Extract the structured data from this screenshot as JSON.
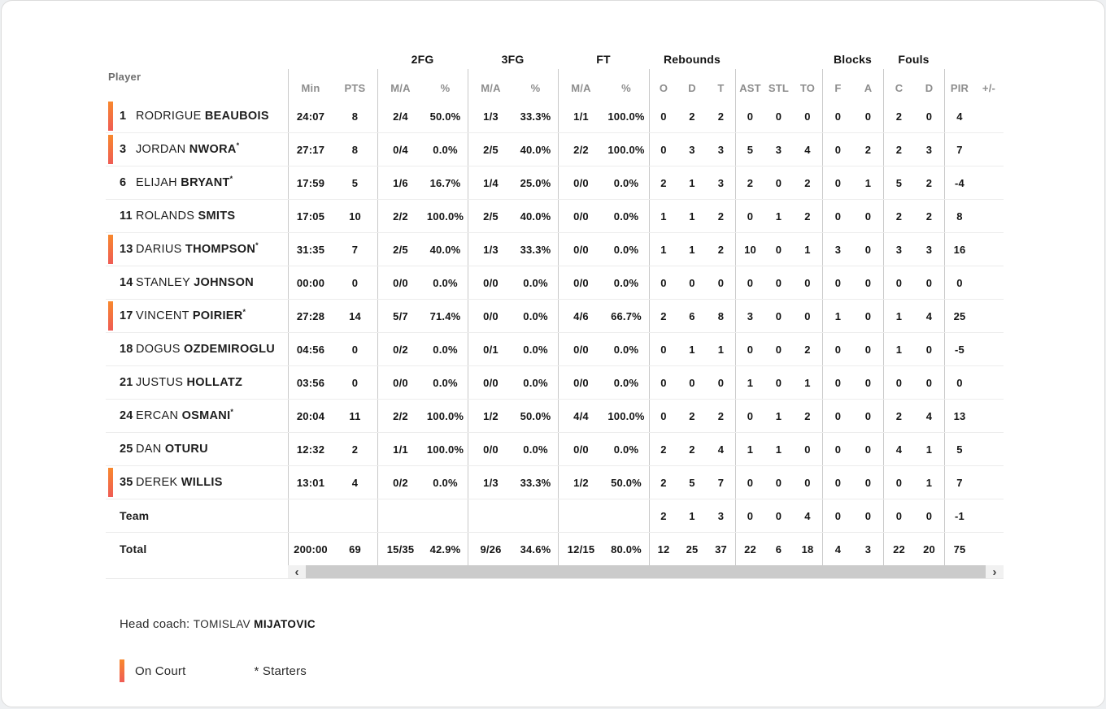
{
  "table": {
    "player_col_header": "Player",
    "groups": [
      {
        "label": "2FG",
        "start": 4,
        "end": 6
      },
      {
        "label": "3FG",
        "start": 6,
        "end": 8
      },
      {
        "label": "FT",
        "start": 8,
        "end": 10
      },
      {
        "label": "Rebounds",
        "start": 10,
        "end": 13
      },
      {
        "label": "Blocks",
        "start": 16,
        "end": 18
      },
      {
        "label": "Fouls",
        "start": 18,
        "end": 20
      }
    ],
    "sub_headers": [
      "Min",
      "PTS",
      "M/A",
      "%",
      "M/A",
      "%",
      "M/A",
      "%",
      "O",
      "D",
      "T",
      "AST",
      "STL",
      "TO",
      "F",
      "A",
      "C",
      "D",
      "PIR",
      "+/-"
    ],
    "rows": [
      {
        "num": "1",
        "first": "RODRIGUE",
        "last": "BEAUBOIS",
        "starter": false,
        "on_court": true,
        "stats": [
          "24:07",
          "8",
          "2/4",
          "50.0%",
          "1/3",
          "33.3%",
          "1/1",
          "100.0%",
          "0",
          "2",
          "2",
          "0",
          "0",
          "0",
          "0",
          "0",
          "2",
          "0",
          "4",
          ""
        ]
      },
      {
        "num": "3",
        "first": "JORDAN",
        "last": "NWORA",
        "starter": true,
        "on_court": true,
        "stats": [
          "27:17",
          "8",
          "0/4",
          "0.0%",
          "2/5",
          "40.0%",
          "2/2",
          "100.0%",
          "0",
          "3",
          "3",
          "5",
          "3",
          "4",
          "0",
          "2",
          "2",
          "3",
          "7",
          ""
        ]
      },
      {
        "num": "6",
        "first": "ELIJAH",
        "last": "BRYANT",
        "starter": true,
        "on_court": false,
        "stats": [
          "17:59",
          "5",
          "1/6",
          "16.7%",
          "1/4",
          "25.0%",
          "0/0",
          "0.0%",
          "2",
          "1",
          "3",
          "2",
          "0",
          "2",
          "0",
          "1",
          "5",
          "2",
          "-4",
          ""
        ]
      },
      {
        "num": "11",
        "first": "ROLANDS",
        "last": "SMITS",
        "starter": false,
        "on_court": false,
        "stats": [
          "17:05",
          "10",
          "2/2",
          "100.0%",
          "2/5",
          "40.0%",
          "0/0",
          "0.0%",
          "1",
          "1",
          "2",
          "0",
          "1",
          "2",
          "0",
          "0",
          "2",
          "2",
          "8",
          ""
        ]
      },
      {
        "num": "13",
        "first": "DARIUS",
        "last": "THOMPSON",
        "starter": true,
        "on_court": true,
        "stats": [
          "31:35",
          "7",
          "2/5",
          "40.0%",
          "1/3",
          "33.3%",
          "0/0",
          "0.0%",
          "1",
          "1",
          "2",
          "10",
          "0",
          "1",
          "3",
          "0",
          "3",
          "3",
          "16",
          ""
        ]
      },
      {
        "num": "14",
        "first": "STANLEY",
        "last": "JOHNSON",
        "starter": false,
        "on_court": false,
        "stats": [
          "00:00",
          "0",
          "0/0",
          "0.0%",
          "0/0",
          "0.0%",
          "0/0",
          "0.0%",
          "0",
          "0",
          "0",
          "0",
          "0",
          "0",
          "0",
          "0",
          "0",
          "0",
          "0",
          ""
        ]
      },
      {
        "num": "17",
        "first": "VINCENT",
        "last": "POIRIER",
        "starter": true,
        "on_court": true,
        "stats": [
          "27:28",
          "14",
          "5/7",
          "71.4%",
          "0/0",
          "0.0%",
          "4/6",
          "66.7%",
          "2",
          "6",
          "8",
          "3",
          "0",
          "0",
          "1",
          "0",
          "1",
          "4",
          "25",
          ""
        ]
      },
      {
        "num": "18",
        "first": "DOGUS",
        "last": "OZDEMIROGLU",
        "starter": false,
        "on_court": false,
        "stats": [
          "04:56",
          "0",
          "0/2",
          "0.0%",
          "0/1",
          "0.0%",
          "0/0",
          "0.0%",
          "0",
          "1",
          "1",
          "0",
          "0",
          "2",
          "0",
          "0",
          "1",
          "0",
          "-5",
          ""
        ]
      },
      {
        "num": "21",
        "first": "JUSTUS",
        "last": "HOLLATZ",
        "starter": false,
        "on_court": false,
        "stats": [
          "03:56",
          "0",
          "0/0",
          "0.0%",
          "0/0",
          "0.0%",
          "0/0",
          "0.0%",
          "0",
          "0",
          "0",
          "1",
          "0",
          "1",
          "0",
          "0",
          "0",
          "0",
          "0",
          ""
        ]
      },
      {
        "num": "24",
        "first": "ERCAN",
        "last": "OSMANI",
        "starter": true,
        "on_court": false,
        "stats": [
          "20:04",
          "11",
          "2/2",
          "100.0%",
          "1/2",
          "50.0%",
          "4/4",
          "100.0%",
          "0",
          "2",
          "2",
          "0",
          "1",
          "2",
          "0",
          "0",
          "2",
          "4",
          "13",
          ""
        ]
      },
      {
        "num": "25",
        "first": "DAN",
        "last": "OTURU",
        "starter": false,
        "on_court": false,
        "stats": [
          "12:32",
          "2",
          "1/1",
          "100.0%",
          "0/0",
          "0.0%",
          "0/0",
          "0.0%",
          "2",
          "2",
          "4",
          "1",
          "1",
          "0",
          "0",
          "0",
          "4",
          "1",
          "5",
          ""
        ]
      },
      {
        "num": "35",
        "first": "DEREK",
        "last": "WILLIS",
        "starter": false,
        "on_court": true,
        "stats": [
          "13:01",
          "4",
          "0/2",
          "0.0%",
          "1/3",
          "33.3%",
          "1/2",
          "50.0%",
          "2",
          "5",
          "7",
          "0",
          "0",
          "0",
          "0",
          "0",
          "0",
          "1",
          "7",
          ""
        ]
      },
      {
        "label": "Team",
        "stats": [
          "",
          "",
          "",
          "",
          "",
          "",
          "",
          "",
          "2",
          "1",
          "3",
          "0",
          "0",
          "4",
          "0",
          "0",
          "0",
          "0",
          "-1",
          ""
        ]
      },
      {
        "label": "Total",
        "stats": [
          "200:00",
          "69",
          "15/35",
          "42.9%",
          "9/26",
          "34.6%",
          "12/15",
          "80.0%",
          "12",
          "25",
          "37",
          "22",
          "6",
          "18",
          "4",
          "3",
          "22",
          "20",
          "75",
          ""
        ]
      }
    ],
    "starter_mark": "*",
    "scrollbar": {
      "left_arrow": "‹",
      "right_arrow": "›"
    }
  },
  "footer": {
    "head_coach_label": "Head coach: ",
    "coach_first": "TOMISLAV ",
    "coach_last": "MIJATOVIC",
    "legend_on_court": "On Court",
    "legend_starters": "* Starters"
  },
  "colors": {
    "on_court_gradient_top": "#f8882d",
    "on_court_gradient_bottom": "#ef5c55",
    "header_text": "#8d8d8d",
    "divider": "#c9c9c9",
    "row_border": "#ececec",
    "scroll_thumb": "#cbcbcb",
    "scroll_track": "#f1f1f1"
  }
}
